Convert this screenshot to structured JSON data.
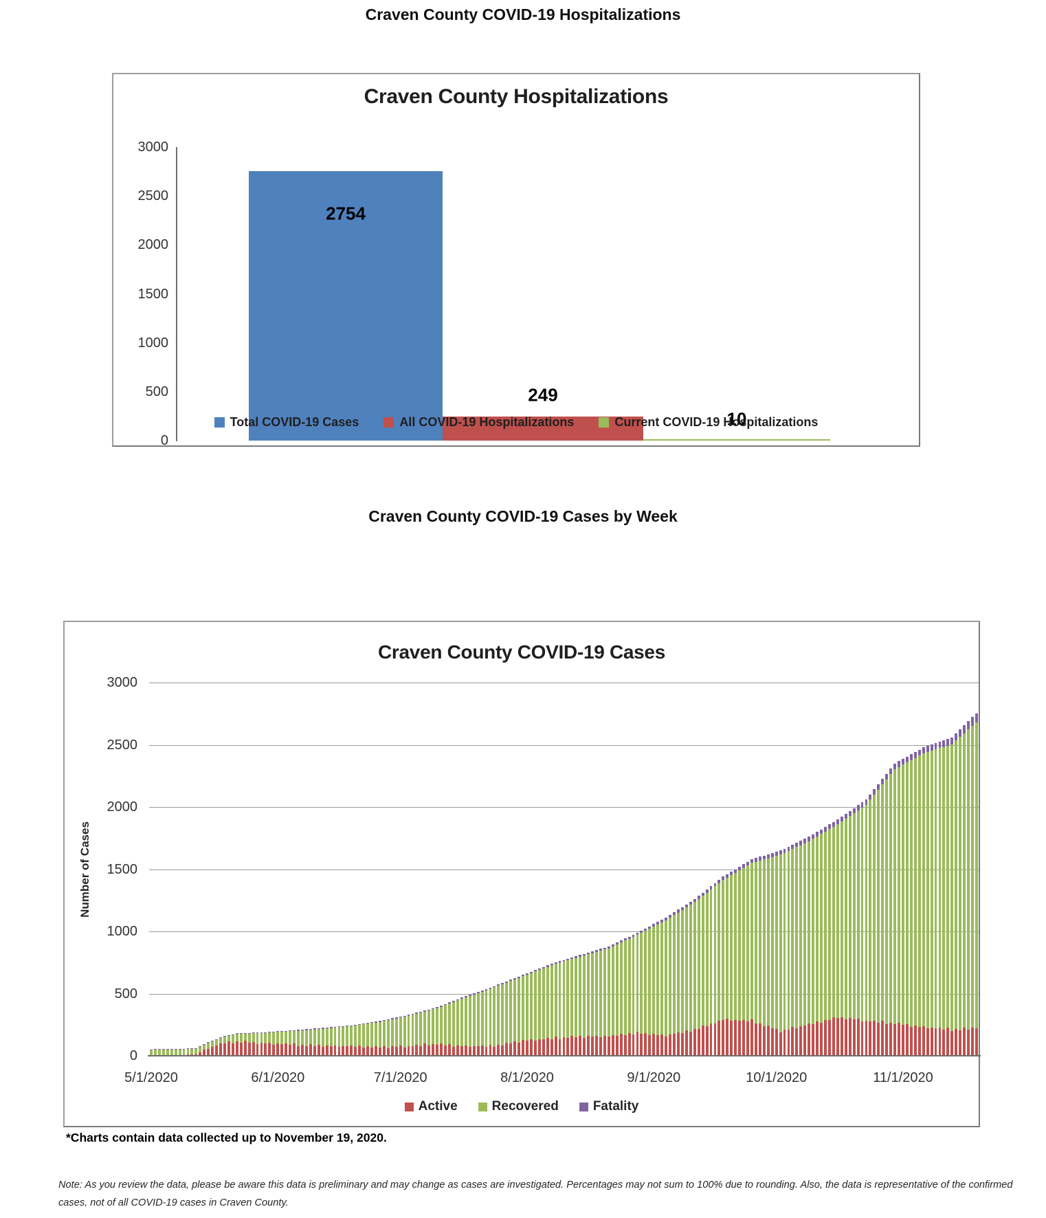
{
  "page": {
    "title1": "Craven County COVID-19 Hospitalizations",
    "title2": "Craven County COVID-19 Cases by Week",
    "footnote": "*Charts contain data collected up to November 19, 2020.",
    "note": "Note: As you review the data, please be aware this data is preliminary and may change as cases are investigated. Percentages may not sum to 100% due to rounding. Also, the data is representative of the confirmed cases, not of all COVID-19 cases in Craven County."
  },
  "colors": {
    "blue": "#4F81BD",
    "red": "#C0504D",
    "green": "#9BBB59",
    "purple": "#8064A2",
    "grid": "#9a9a9a",
    "axis": "#6e6e6e"
  },
  "chart_data": [
    {
      "type": "bar",
      "title": "Craven County Hospitalizations",
      "categories": [
        "Total COVID-19 Cases",
        "All COVID-19 Hospitalizations",
        "Current COVID-19 Hospitalizations"
      ],
      "values": [
        2754,
        249,
        10
      ],
      "bar_colors": [
        "#4F81BD",
        "#C0504D",
        "#9BBB59"
      ],
      "data_labels": [
        "2754",
        "249",
        "10"
      ],
      "yticks": [
        3000,
        2500,
        2000,
        1500,
        1000,
        500,
        0
      ],
      "ylim": [
        0,
        3000
      ],
      "grid": false,
      "legend_position": "bottom",
      "legend": [
        {
          "label": "Total COVID-19 Cases",
          "color": "#4F81BD"
        },
        {
          "label": "All COVID-19 Hospitalizations",
          "color": "#C0504D"
        },
        {
          "label": "Current COVID-19 Hospitalizations",
          "color": "#9BBB59"
        }
      ]
    },
    {
      "type": "stacked-bar",
      "title": "Craven County COVID-19 Cases",
      "ylabel": "Number of Cases",
      "ylim": [
        0,
        3000
      ],
      "yticks": [
        3000,
        2500,
        2000,
        1500,
        1000,
        500,
        0
      ],
      "grid": true,
      "legend_position": "bottom",
      "series_names": [
        "Active",
        "Recovered",
        "Fatality"
      ],
      "legend": [
        {
          "label": "Active",
          "color": "#C0504D"
        },
        {
          "label": "Recovered",
          "color": "#9BBB59"
        },
        {
          "label": "Fatality",
          "color": "#8064A2"
        }
      ],
      "start_date": "5/1/2020",
      "end_date": "11/19/2020",
      "num_days": 203,
      "xticks": [
        {
          "label": "5/1/2020",
          "day": 0
        },
        {
          "label": "6/1/2020",
          "day": 31
        },
        {
          "label": "7/1/2020",
          "day": 61
        },
        {
          "label": "8/1/2020",
          "day": 92
        },
        {
          "label": "9/1/2020",
          "day": 123
        },
        {
          "label": "10/1/2020",
          "day": 153
        },
        {
          "label": "11/1/2020",
          "day": 184
        }
      ],
      "anchors": [
        {
          "day": 0,
          "date": "5/1/2020",
          "total": 52,
          "active": 4,
          "fatality": 2
        },
        {
          "day": 7,
          "date": "5/8/2020",
          "total": 56,
          "active": 5,
          "fatality": 3
        },
        {
          "day": 11,
          "date": "5/12/2020",
          "total": 62,
          "active": 12,
          "fatality": 3
        },
        {
          "day": 14,
          "date": "5/15/2020",
          "total": 110,
          "active": 62,
          "fatality": 4
        },
        {
          "day": 18,
          "date": "5/19/2020",
          "total": 160,
          "active": 105,
          "fatality": 4
        },
        {
          "day": 21,
          "date": "5/22/2020",
          "total": 180,
          "active": 115,
          "fatality": 4
        },
        {
          "day": 28,
          "date": "5/29/2020",
          "total": 190,
          "active": 100,
          "fatality": 5
        },
        {
          "day": 35,
          "date": "6/5/2020",
          "total": 205,
          "active": 90,
          "fatality": 6
        },
        {
          "day": 42,
          "date": "6/12/2020",
          "total": 225,
          "active": 80,
          "fatality": 7
        },
        {
          "day": 49,
          "date": "6/19/2020",
          "total": 245,
          "active": 75,
          "fatality": 7
        },
        {
          "day": 56,
          "date": "6/26/2020",
          "total": 280,
          "active": 70,
          "fatality": 7
        },
        {
          "day": 63,
          "date": "7/3/2020",
          "total": 330,
          "active": 75,
          "fatality": 8
        },
        {
          "day": 70,
          "date": "7/10/2020",
          "total": 390,
          "active": 95,
          "fatality": 8
        },
        {
          "day": 77,
          "date": "7/17/2020",
          "total": 480,
          "active": 75,
          "fatality": 9
        },
        {
          "day": 84,
          "date": "7/24/2020",
          "total": 560,
          "active": 80,
          "fatality": 10
        },
        {
          "day": 91,
          "date": "7/31/2020",
          "total": 650,
          "active": 120,
          "fatality": 11
        },
        {
          "day": 98,
          "date": "8/7/2020",
          "total": 740,
          "active": 140,
          "fatality": 12
        },
        {
          "day": 105,
          "date": "8/14/2020",
          "total": 810,
          "active": 155,
          "fatality": 14
        },
        {
          "day": 112,
          "date": "8/21/2020",
          "total": 880,
          "active": 155,
          "fatality": 16
        },
        {
          "day": 119,
          "date": "8/28/2020",
          "total": 990,
          "active": 185,
          "fatality": 18
        },
        {
          "day": 126,
          "date": "9/4/2020",
          "total": 1110,
          "active": 160,
          "fatality": 21
        },
        {
          "day": 133,
          "date": "9/11/2020",
          "total": 1260,
          "active": 210,
          "fatality": 24
        },
        {
          "day": 140,
          "date": "9/18/2020",
          "total": 1440,
          "active": 290,
          "fatality": 27
        },
        {
          "day": 147,
          "date": "9/25/2020",
          "total": 1580,
          "active": 280,
          "fatality": 30
        },
        {
          "day": 154,
          "date": "10/2/2020",
          "total": 1650,
          "active": 200,
          "fatality": 33
        },
        {
          "day": 161,
          "date": "10/9/2020",
          "total": 1760,
          "active": 250,
          "fatality": 36
        },
        {
          "day": 168,
          "date": "10/16/2020",
          "total": 1900,
          "active": 310,
          "fatality": 39
        },
        {
          "day": 175,
          "date": "10/23/2020",
          "total": 2060,
          "active": 280,
          "fatality": 42
        },
        {
          "day": 182,
          "date": "10/30/2020",
          "total": 2350,
          "active": 260,
          "fatality": 46
        },
        {
          "day": 189,
          "date": "11/6/2020",
          "total": 2480,
          "active": 230,
          "fatality": 50
        },
        {
          "day": 196,
          "date": "11/13/2020",
          "total": 2560,
          "active": 210,
          "fatality": 55
        },
        {
          "day": 202,
          "date": "11/19/2020",
          "total": 2754,
          "active": 220,
          "fatality": 72
        }
      ],
      "active_jitter": [
        0,
        7,
        -5,
        11,
        -9,
        4,
        -7,
        9,
        -4,
        6,
        -10,
        5,
        -2,
        8,
        -6,
        3
      ]
    }
  ]
}
